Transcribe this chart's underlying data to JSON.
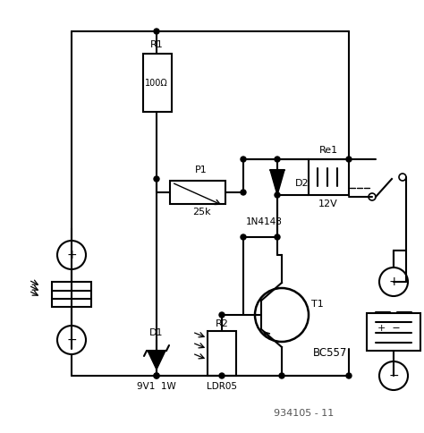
{
  "bg_color": "#ffffff",
  "line_color": "#000000",
  "fig_width": 4.74,
  "fig_height": 4.84,
  "dpi": 100,
  "watermark": "934105 - 11",
  "labels": {
    "R1": "R1",
    "R1_val": "100Ω",
    "P1": "P1",
    "P1_val": "25k",
    "D1": "D1",
    "D1_val": "9V1  1W",
    "D2": "D2",
    "D2_label": "1N4148",
    "Re1": "Re1",
    "Re1_val": "12V",
    "T1": "T1",
    "T1_label": "BC557",
    "R2": "R2",
    "R2_label": "LDR05"
  }
}
